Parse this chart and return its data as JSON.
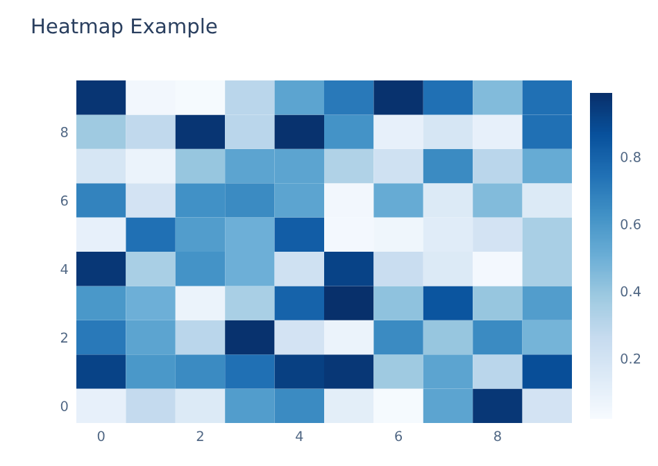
{
  "chart_data": {
    "type": "heatmap",
    "title": "Heatmap Example",
    "categories": [
      "0",
      null,
      "2",
      null,
      "4",
      null,
      "6",
      null,
      "8",
      null
    ],
    "y_categories": [
      null,
      "8",
      null,
      "6",
      null,
      "4",
      null,
      "2",
      null,
      "0"
    ],
    "cells": [
      [
        0.97,
        0.05,
        0.03,
        0.3,
        0.55,
        0.72,
        0.98,
        0.75,
        0.45,
        0.75
      ],
      [
        0.38,
        0.28,
        0.97,
        0.3,
        0.98,
        0.62,
        0.1,
        0.18,
        0.1,
        0.75
      ],
      [
        0.18,
        0.08,
        0.4,
        0.55,
        0.55,
        0.33,
        0.22,
        0.65,
        0.3,
        0.52
      ],
      [
        0.68,
        0.2,
        0.63,
        0.65,
        0.55,
        0.05,
        0.52,
        0.15,
        0.45,
        0.15
      ],
      [
        0.1,
        0.75,
        0.58,
        0.5,
        0.82,
        0.04,
        0.06,
        0.13,
        0.2,
        0.35
      ],
      [
        0.96,
        0.35,
        0.62,
        0.5,
        0.22,
        0.92,
        0.25,
        0.15,
        0.04,
        0.35
      ],
      [
        0.6,
        0.5,
        0.08,
        0.35,
        0.8,
        0.99,
        0.42,
        0.85,
        0.4,
        0.58
      ],
      [
        0.72,
        0.55,
        0.3,
        0.98,
        0.2,
        0.08,
        0.65,
        0.4,
        0.65,
        0.48
      ],
      [
        0.92,
        0.6,
        0.65,
        0.75,
        0.93,
        0.96,
        0.38,
        0.55,
        0.3,
        0.88
      ],
      [
        0.1,
        0.27,
        0.15,
        0.58,
        0.65,
        0.12,
        0.03,
        0.55,
        0.96,
        0.2
      ]
    ],
    "clim": [
      0.02,
      0.99
    ],
    "cticks": [
      0.2,
      0.4,
      0.6,
      0.8
    ]
  }
}
